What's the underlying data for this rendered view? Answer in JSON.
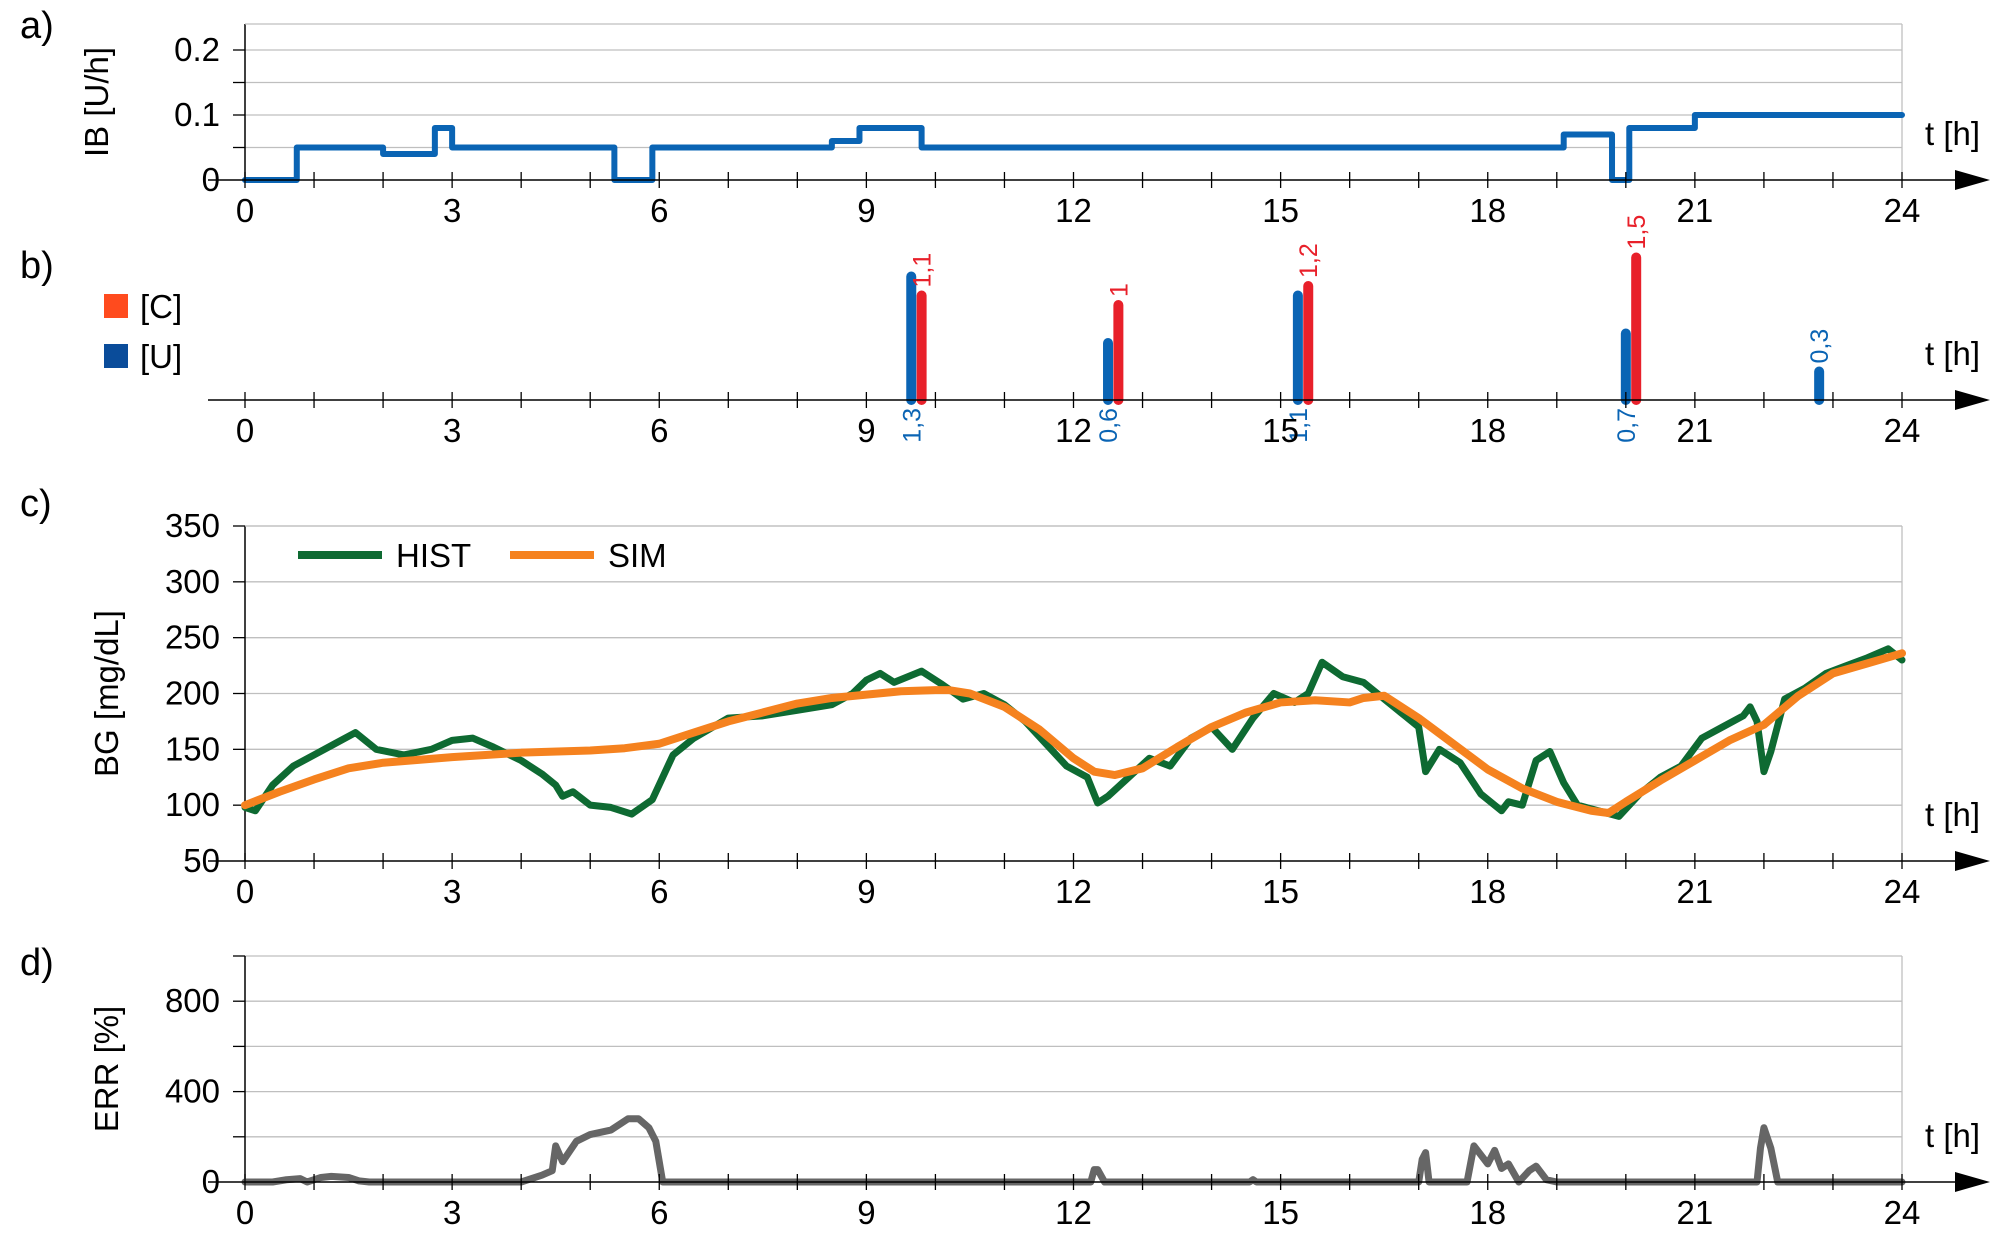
{
  "chart_data": [
    {
      "panel": "a)",
      "type": "line",
      "ylabel": "IB [U/h]",
      "xlabel": "t [h]",
      "xlim": [
        0,
        24
      ],
      "ylim": [
        0,
        0.24
      ],
      "xticks": [
        0,
        3,
        6,
        9,
        12,
        15,
        18,
        21,
        24
      ],
      "yticks": [
        0,
        0.1,
        0.2
      ],
      "ytick_labels": [
        "0",
        "0.1",
        "0.2"
      ],
      "grid": true,
      "series": [
        {
          "color": "#0a64b4",
          "step": true,
          "x": [
            0,
            0.75,
            2.0,
            2.15,
            2.75,
            3.0,
            5.35,
            5.9,
            8.5,
            8.9,
            9.8,
            19.1,
            19.8,
            20.05,
            21.0,
            24.0
          ],
          "y": [
            0,
            0.05,
            0.04,
            0.04,
            0.08,
            0.05,
            0,
            0.05,
            0.06,
            0.08,
            0.05,
            0.07,
            0,
            0.08,
            0.1,
            0.1
          ]
        }
      ]
    },
    {
      "panel": "b)",
      "type": "bar",
      "xlabel": "t [h]",
      "xlim": [
        0,
        24
      ],
      "xticks": [
        0,
        3,
        6,
        9,
        12,
        15,
        18,
        21,
        24
      ],
      "legend": [
        {
          "name": "[C]",
          "color": "#ff4b1e"
        },
        {
          "name": "[U]",
          "color": "#0a4c9a"
        }
      ],
      "legend_position": "left",
      "series": [
        {
          "name": "[U]",
          "color": "#0a64b4",
          "x": [
            9.65,
            12.5,
            15.25,
            20.0,
            22.8
          ],
          "values": [
            1.3,
            0.6,
            1.1,
            0.7,
            0.3
          ],
          "labels": [
            "1,3",
            "0,6",
            "1,1",
            "0,7",
            "0,3"
          ]
        },
        {
          "name": "[C]",
          "color": "#e8202a",
          "x": [
            9.8,
            12.65,
            15.4,
            20.15
          ],
          "values": [
            1.1,
            1,
            1.2,
            1.5
          ],
          "labels": [
            "1,1",
            "1",
            "1,2",
            "1,5"
          ]
        }
      ]
    },
    {
      "panel": "c)",
      "type": "line",
      "ylabel": "BG [mg/dL]",
      "xlabel": "t [h]",
      "xlim": [
        0,
        24
      ],
      "ylim": [
        50,
        350
      ],
      "xticks": [
        0,
        3,
        6,
        9,
        12,
        15,
        18,
        21,
        24
      ],
      "yticks": [
        50,
        100,
        150,
        200,
        250,
        300,
        350
      ],
      "grid": true,
      "legend_position": "top-left",
      "series": [
        {
          "name": "HIST",
          "color": "#0e6a32",
          "x": [
            0,
            0.15,
            0.4,
            0.7,
            1.0,
            1.3,
            1.6,
            1.9,
            2.3,
            2.7,
            3.0,
            3.3,
            3.6,
            4.0,
            4.3,
            4.5,
            4.6,
            4.75,
            5.0,
            5.3,
            5.6,
            5.9,
            6.2,
            6.5,
            7.0,
            7.5,
            8.0,
            8.5,
            8.8,
            9.0,
            9.2,
            9.4,
            9.6,
            9.8,
            10.1,
            10.4,
            10.7,
            11.0,
            11.3,
            11.6,
            11.9,
            12.2,
            12.35,
            12.5,
            12.8,
            13.1,
            13.4,
            13.7,
            14.0,
            14.3,
            14.6,
            14.9,
            15.2,
            15.4,
            15.6,
            15.9,
            16.2,
            16.5,
            16.8,
            17.0,
            17.1,
            17.3,
            17.6,
            17.9,
            18.1,
            18.2,
            18.3,
            18.5,
            18.7,
            18.9,
            19.1,
            19.3,
            19.6,
            19.9,
            20.2,
            20.5,
            20.8,
            21.1,
            21.4,
            21.7,
            21.8,
            21.9,
            22.0,
            22.1,
            22.3,
            22.6,
            22.9,
            23.2,
            23.5,
            23.8,
            24.0
          ],
          "y": [
            98,
            95,
            118,
            135,
            145,
            155,
            165,
            150,
            145,
            150,
            158,
            160,
            152,
            140,
            128,
            118,
            108,
            112,
            100,
            98,
            92,
            105,
            145,
            160,
            178,
            180,
            185,
            190,
            200,
            212,
            218,
            210,
            215,
            220,
            208,
            195,
            200,
            190,
            175,
            155,
            135,
            125,
            102,
            108,
            125,
            142,
            135,
            160,
            170,
            150,
            178,
            200,
            192,
            200,
            228,
            215,
            210,
            195,
            180,
            170,
            130,
            150,
            138,
            110,
            100,
            95,
            103,
            100,
            140,
            148,
            120,
            100,
            95,
            90,
            110,
            125,
            135,
            160,
            170,
            180,
            188,
            175,
            130,
            148,
            195,
            205,
            218,
            225,
            232,
            240,
            230
          ]
        },
        {
          "name": "SIM",
          "color": "#f5821f",
          "x": [
            0,
            0.5,
            1.0,
            1.5,
            2.0,
            3.0,
            4.0,
            5.0,
            5.5,
            6.0,
            6.5,
            7.0,
            7.5,
            8.0,
            8.5,
            9.0,
            9.5,
            10.0,
            10.2,
            10.5,
            11.0,
            11.5,
            12.0,
            12.3,
            12.6,
            13.0,
            13.5,
            14.0,
            14.5,
            15.0,
            15.5,
            16.0,
            16.2,
            16.5,
            17.0,
            17.5,
            18.0,
            18.5,
            19.0,
            19.5,
            19.75,
            20.0,
            20.5,
            21.0,
            21.5,
            22.0,
            22.5,
            23.0,
            23.5,
            24.0
          ],
          "y": [
            100,
            112,
            123,
            133,
            138,
            143,
            147,
            149,
            151,
            155,
            165,
            175,
            183,
            191,
            196,
            199,
            202,
            203,
            203,
            200,
            188,
            168,
            142,
            130,
            127,
            133,
            152,
            170,
            183,
            192,
            194,
            192,
            196,
            198,
            178,
            155,
            132,
            115,
            103,
            95,
            93,
            103,
            122,
            140,
            158,
            172,
            198,
            218,
            227,
            236
          ]
        }
      ]
    },
    {
      "panel": "d)",
      "type": "line",
      "ylabel": "ERR [%]",
      "xlabel": "t [h]",
      "xlim": [
        0,
        24
      ],
      "ylim": [
        0,
        1000
      ],
      "xticks": [
        0,
        3,
        6,
        9,
        12,
        15,
        18,
        21,
        24
      ],
      "yticks": [
        0,
        400,
        800
      ],
      "grid": true,
      "series": [
        {
          "color": "#666666",
          "x": [
            0,
            0.4,
            0.6,
            0.8,
            0.9,
            1.1,
            1.25,
            1.5,
            1.65,
            1.8,
            4.0,
            4.3,
            4.45,
            4.5,
            4.6,
            4.8,
            5.0,
            5.3,
            5.55,
            5.7,
            5.85,
            5.95,
            6.05,
            6.2,
            12.25,
            12.3,
            12.35,
            12.45,
            14.55,
            14.6,
            14.65,
            17.0,
            17.05,
            17.1,
            17.15,
            17.7,
            17.8,
            17.9,
            18.0,
            18.1,
            18.2,
            18.3,
            18.45,
            18.6,
            18.7,
            18.85,
            19.0,
            21.9,
            21.95,
            22.0,
            22.1,
            22.2,
            24.0
          ],
          "y": [
            0,
            0,
            10,
            15,
            0,
            20,
            25,
            20,
            5,
            0,
            0,
            30,
            50,
            160,
            90,
            180,
            210,
            230,
            280,
            280,
            240,
            180,
            0,
            0,
            0,
            55,
            55,
            0,
            0,
            10,
            0,
            0,
            100,
            130,
            0,
            0,
            160,
            120,
            80,
            140,
            60,
            80,
            0,
            50,
            70,
            10,
            0,
            0,
            150,
            240,
            150,
            0,
            0
          ]
        }
      ]
    }
  ]
}
